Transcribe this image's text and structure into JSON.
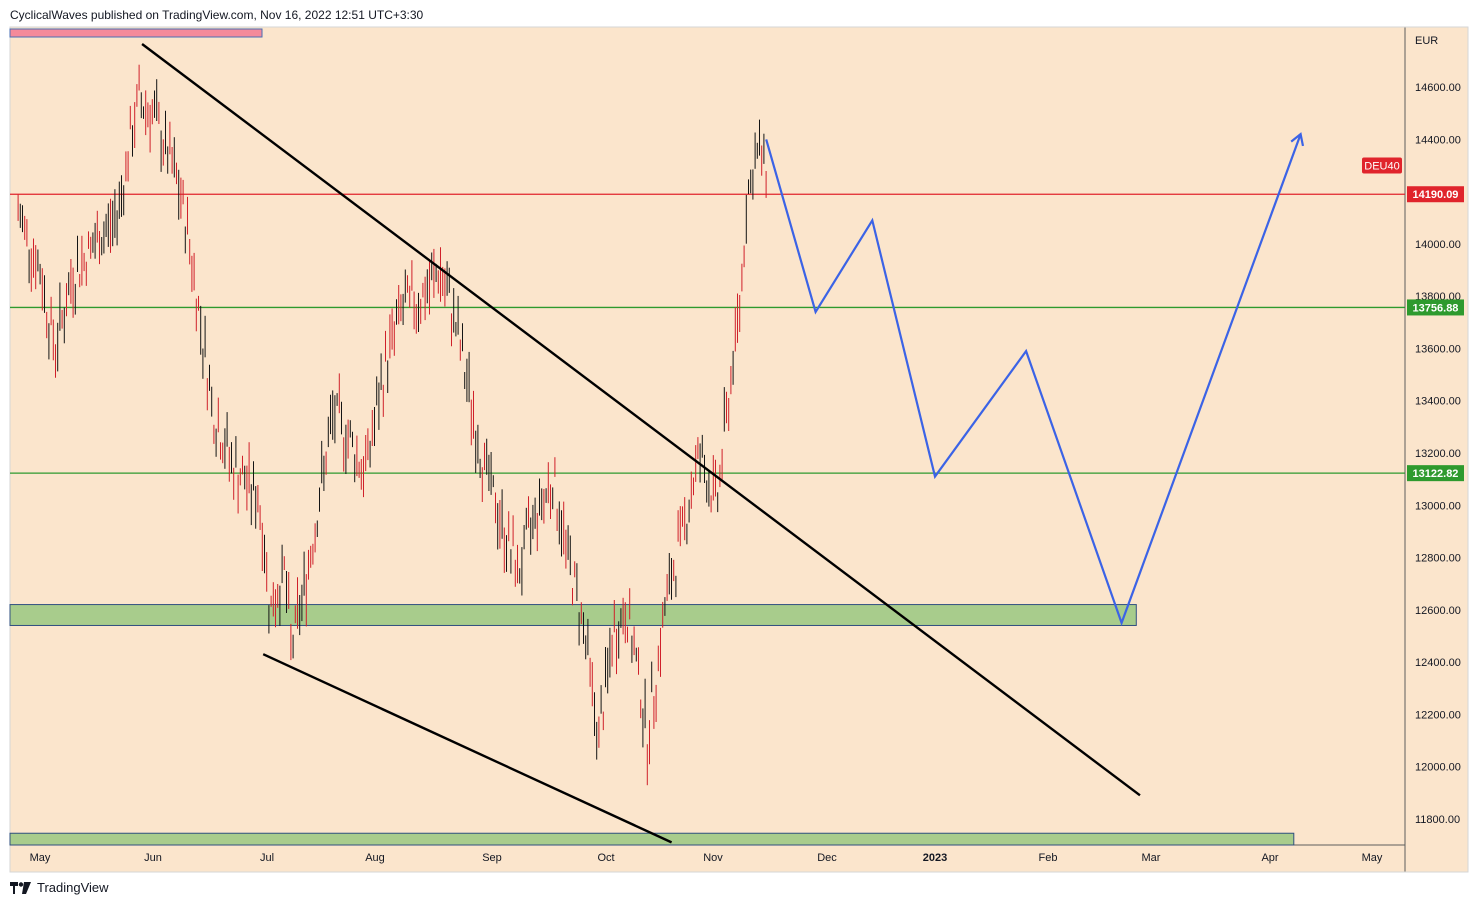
{
  "header": {
    "attribution": "CyclicalWaves published on TradingView.com, Nov 16, 2022 12:51 UTC+3:30"
  },
  "footer": {
    "brand": "TradingView"
  },
  "chart_data": {
    "type": "bar",
    "symbol": "DEU40",
    "currency": "EUR",
    "title": "",
    "xlabel": "",
    "ylabel": "",
    "ylim": [
      11700,
      14830
    ],
    "y_ticks": [
      11800,
      12000,
      12200,
      12400,
      12600,
      12800,
      13000,
      13200,
      13400,
      13600,
      13800,
      14000,
      14200,
      14400,
      14600
    ],
    "x_ticks": [
      "May",
      "Jun",
      "Jul",
      "Aug",
      "Sep",
      "Oct",
      "Nov",
      "Dec",
      "2023",
      "Feb",
      "Mar",
      "Apr",
      "May"
    ],
    "price_levels": [
      {
        "label": "14190.09",
        "value": 14190.09,
        "color": "#e0242c"
      },
      {
        "label": "13756.88",
        "value": 13756.88,
        "color": "#2e9a2e"
      },
      {
        "label": "13122.82",
        "value": 13122.82,
        "color": "#2e9a2e"
      }
    ],
    "symbol_tag_value": 14300,
    "support_zones": [
      {
        "low": 12540,
        "high": 12620,
        "from": "2022-04-25",
        "to": "2023-02-25"
      },
      {
        "low": 11700,
        "high": 11745,
        "from": "2022-04-25",
        "to": "2023-04-08"
      }
    ],
    "trendlines": [
      {
        "points": [
          [
            "2022-05-29",
            14765
          ],
          [
            "2023-02-26",
            11890
          ]
        ]
      },
      {
        "points": [
          [
            "2022-06-30",
            12430
          ],
          [
            "2022-10-20",
            11710
          ]
        ]
      }
    ],
    "projection_path": [
      [
        "2022-11-15",
        14400
      ],
      [
        "2022-11-28",
        13740
      ],
      [
        "2022-12-14",
        14090
      ],
      [
        "2023-01-01",
        13110
      ],
      [
        "2023-01-26",
        13590
      ],
      [
        "2023-02-21",
        12550
      ],
      [
        "2023-04-10",
        14420
      ]
    ],
    "price_series": [
      {
        "name": "DEU40",
        "x": [
          "2022-04-25",
          "2022-05-01",
          "2022-05-05",
          "2022-05-10",
          "2022-05-16",
          "2022-05-22",
          "2022-05-28",
          "2022-06-01",
          "2022-06-07",
          "2022-06-10",
          "2022-06-13",
          "2022-06-17",
          "2022-06-22",
          "2022-06-29",
          "2022-07-02",
          "2022-07-06",
          "2022-07-08",
          "2022-07-12",
          "2022-07-20",
          "2022-07-25",
          "2022-07-29",
          "2022-08-04",
          "2022-08-08",
          "2022-08-14",
          "2022-08-18",
          "2022-08-22",
          "2022-08-29",
          "2022-09-03",
          "2022-09-08",
          "2022-09-12",
          "2022-09-17",
          "2022-09-21",
          "2022-09-25",
          "2022-09-29",
          "2022-10-03",
          "2022-10-07",
          "2022-10-11",
          "2022-10-13",
          "2022-10-18",
          "2022-10-24",
          "2022-10-28",
          "2022-11-02",
          "2022-11-05",
          "2022-11-08",
          "2022-11-10",
          "2022-11-13",
          "2022-11-15"
        ],
        "values": [
          14120,
          13900,
          13600,
          13880,
          14000,
          14100,
          14550,
          14500,
          14250,
          14060,
          13750,
          13350,
          13150,
          13020,
          12600,
          12750,
          12450,
          12700,
          13350,
          13250,
          13120,
          13550,
          13750,
          13800,
          13900,
          13720,
          13200,
          12950,
          12740,
          12950,
          13100,
          12800,
          12550,
          12100,
          12500,
          12600,
          12300,
          12100,
          12600,
          12950,
          13200,
          13000,
          13400,
          13750,
          14200,
          14350,
          14300
        ]
      }
    ],
    "grid": false,
    "legend": "none"
  }
}
